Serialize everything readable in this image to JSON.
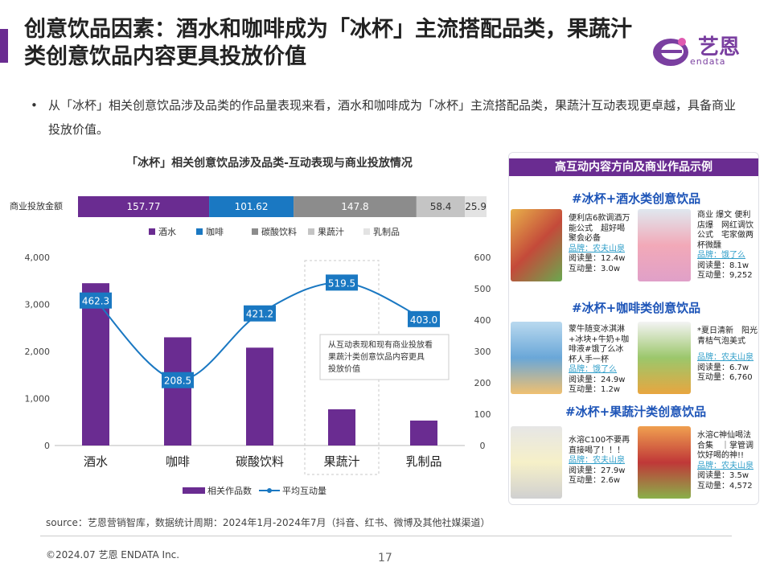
{
  "header": {
    "title": "创意饮品因素：酒水和咖啡成为「冰杯」主流搭配品类，果蔬汁类创意饮品内容更具投放价值",
    "logo_text": "艺恩",
    "logo_sub": "endata"
  },
  "bullet": {
    "dot": "•",
    "text": "从「冰杯」相关创意饮品涉及品类的作品量表现来看，酒水和咖啡成为「冰杯」主流搭配品类，果蔬汁互动表现更卓越，具备商业投放价值。"
  },
  "chart_data": [
    {
      "type": "bar",
      "title": "「冰杯」相关创意饮品涉及品类-互动表现与商业投放情况",
      "stacked_label": "商业投放金额",
      "stacked_values": [
        157.77,
        101.62,
        147.8,
        58.4,
        25.9
      ],
      "stacked_colors": [
        "#6a2c91",
        "#1a78c2",
        "#8c8c8c",
        "#c4c4c4",
        "#e3e3e3"
      ],
      "stacked_legend": [
        "酒水",
        "咖啡",
        "碳酸饮料",
        "果蔬汁",
        "乳制品"
      ]
    },
    {
      "type": "bar",
      "categories": [
        "酒水",
        "咖啡",
        "碳酸饮料",
        "果蔬汁",
        "乳制品"
      ],
      "series": [
        {
          "name": "相关作品数",
          "type": "bar",
          "values": [
            3450,
            2300,
            2080,
            770,
            530
          ],
          "color": "#6a2c91",
          "axis": "left"
        },
        {
          "name": "平均互动量",
          "type": "line",
          "values": [
            462.3,
            208.5,
            421.2,
            519.5,
            403.0
          ],
          "color": "#1a78c2",
          "axis": "right"
        }
      ],
      "y_left": {
        "ticks": [
          "0",
          "1,000",
          "2,000",
          "3,000",
          "4,000"
        ],
        "range": [
          0,
          4000
        ]
      },
      "y_right": {
        "ticks": [
          "0",
          "100",
          "200",
          "300",
          "400",
          "500",
          "600"
        ],
        "range": [
          0,
          600
        ]
      },
      "annotation": "从互动表现和现有商业投放看果蔬汁类创意饮品内容更具投放价值",
      "legend_position": "bottom"
    }
  ],
  "panel": {
    "title": "高互动内容方向及商业作品示例",
    "sections": [
      {
        "title": "#冰杯+酒水类创意饮品",
        "cards": [
          {
            "text": "便利店6款调酒万能公式　超好喝　聚会必备",
            "brand": "品牌：农夫山泉",
            "reads": "阅读量：12.4w",
            "interact": "互动量：3.0w"
          },
          {
            "text": "商业 爆文 便利店爆　网红调饮公式　宅家做两杯微醺",
            "brand": "品牌：饿了么",
            "reads": "阅读量：8.1w",
            "interact": "互动量：9,252"
          }
        ]
      },
      {
        "title": "#冰杯+咖啡类创意饮品",
        "cards": [
          {
            "text": "蒙牛随变冰淇淋+冰块+牛奶+咖啡液#饿了么冰杯人手一杯",
            "brand": "品牌：饿了么",
            "reads": "阅读量：24.9w",
            "interact": "互动量：1.2w"
          },
          {
            "text": "*夏日清新　阳光青桔气泡美式",
            "brand": "品牌：农夫山泉",
            "reads": "阅读量：6.7w",
            "interact": "互动量：6,760"
          }
        ]
      },
      {
        "title": "#冰杯+果蔬汁类创意饮品",
        "cards": [
          {
            "text": "水溶C100不要再直接喝了！！！",
            "brand": "品牌：农夫山泉",
            "reads": "阅读量：27.9w",
            "interact": "互动量：2.6w"
          },
          {
            "text": "水溶C神仙喝法合集　｜掌管调饮好喝的神!!",
            "brand": "品牌：农夫山泉",
            "reads": "阅读量：3.5w",
            "interact": "互动量：4,572"
          }
        ]
      }
    ]
  },
  "footer": {
    "source": "source：艺恩营销智库，数据统计周期：2024年1月-2024年7月（抖音、红书、微博及其他社媒渠道）",
    "copyright": "©2024.07  艺恩 ENDATA Inc.",
    "page": "17"
  }
}
